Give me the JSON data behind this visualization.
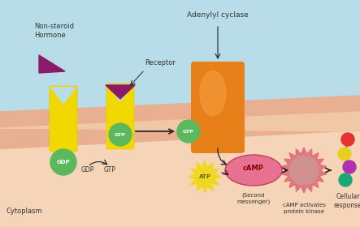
{
  "bg_top_color": "#b8dde8",
  "bg_membrane_outer": "#e8b090",
  "bg_membrane_inner": "#f0c8a8",
  "bg_cytoplasm_color": "#f5d4b8",
  "yellow_color": "#f0d800",
  "yellow_shade": "#e8c800",
  "green_color": "#5cb85c",
  "orange_body": "#e8801a",
  "orange_highlight": "#f5a040",
  "purple_color": "#8b1a6b",
  "pink_spike": "#e06878",
  "pink_center": "#d09090",
  "red_ball": "#e83030",
  "yellow_ball": "#e8d020",
  "magenta_ball": "#b030b0",
  "teal_ball": "#18a878",
  "atp_color": "#f0d820",
  "atp_text": "#666600",
  "camp_fill": "#e87090",
  "camp_edge": "#c04060",
  "camp_text": "#880000",
  "label_color": "#333333",
  "arrow_color": "#222222",
  "text_hormone": "Non-steroid\nHormone",
  "text_receptor": "Receptor",
  "text_adenylyl": "Adenylyl cyclase",
  "text_gdp_ball": "GDP",
  "text_gdp": "GDP",
  "text_gtp": "GTP",
  "text_gtp_ball": "GTP",
  "text_atp": "ATP",
  "text_camp": "cAMP",
  "text_second": "(Second\nmessenger)",
  "text_kinase": "cAMP activates\nprotein kinase",
  "text_cellular": "Cellular\nresponse",
  "text_cytoplasm": "Cytoplasm"
}
